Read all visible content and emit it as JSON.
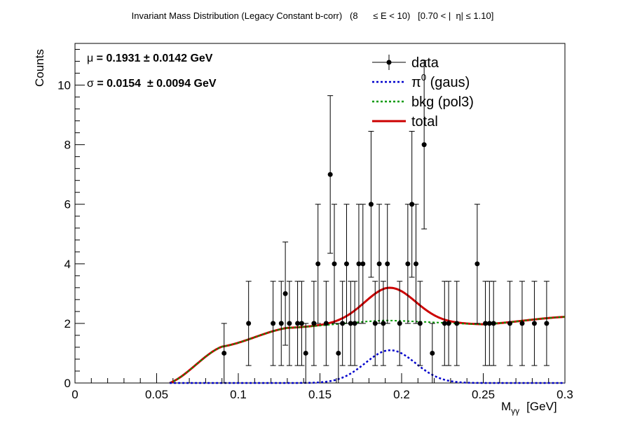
{
  "chart_data": {
    "type": "scatter",
    "title": "Invariant Mass Distribution (Legacy Constant b-corr)   (8      ≤ E < 10)   [0.70 < |  η| ≤ 1.10]",
    "xlabel": "M",
    "xlabel_sub": "γγ",
    "xlabel_unit": "[GeV]",
    "ylabel": "Counts",
    "xlim": [
      0,
      0.3
    ],
    "ylim": [
      0,
      11.4
    ],
    "x_ticks": [
      0,
      0.05,
      0.1,
      0.15,
      0.2,
      0.25,
      0.3
    ],
    "x_tick_labels": [
      "0",
      "0.05",
      "0.1",
      "0.15",
      "0.2",
      "0.25",
      "0.3"
    ],
    "y_ticks": [
      0,
      2,
      4,
      6,
      8,
      10
    ],
    "y_tick_labels": [
      "0",
      "2",
      "4",
      "6",
      "8",
      "10"
    ],
    "stats": {
      "mu": {
        "symbol": "μ",
        "text": " = 0.1931 ± 0.0142 GeV"
      },
      "sigma": {
        "symbol": "σ",
        "text": " = 0.0154  ± 0.0094 GeV"
      }
    },
    "legend": [
      {
        "label": "data",
        "style": "marker-errorbar",
        "color": "#000000"
      },
      {
        "label": "π",
        "sup": "0",
        "suffix": " (gaus)",
        "style": "dashed",
        "color": "#0000cc"
      },
      {
        "label": "bkg (pol3)",
        "style": "dashed",
        "color": "#009900"
      },
      {
        "label": "total",
        "style": "solid",
        "color": "#cc0000"
      }
    ],
    "points": [
      {
        "x": 0.0913,
        "y": 1
      },
      {
        "x": 0.1063,
        "y": 2
      },
      {
        "x": 0.1213,
        "y": 2
      },
      {
        "x": 0.1263,
        "y": 2
      },
      {
        "x": 0.1288,
        "y": 3
      },
      {
        "x": 0.1313,
        "y": 2
      },
      {
        "x": 0.1363,
        "y": 2
      },
      {
        "x": 0.1388,
        "y": 2
      },
      {
        "x": 0.1413,
        "y": 1
      },
      {
        "x": 0.1463,
        "y": 2
      },
      {
        "x": 0.1488,
        "y": 4
      },
      {
        "x": 0.1538,
        "y": 2
      },
      {
        "x": 0.1563,
        "y": 7
      },
      {
        "x": 0.1588,
        "y": 4
      },
      {
        "x": 0.1613,
        "y": 1
      },
      {
        "x": 0.1638,
        "y": 2
      },
      {
        "x": 0.1663,
        "y": 4
      },
      {
        "x": 0.1688,
        "y": 2
      },
      {
        "x": 0.1713,
        "y": 2
      },
      {
        "x": 0.1738,
        "y": 4
      },
      {
        "x": 0.1763,
        "y": 4
      },
      {
        "x": 0.1813,
        "y": 6
      },
      {
        "x": 0.1838,
        "y": 2
      },
      {
        "x": 0.1863,
        "y": 4
      },
      {
        "x": 0.1888,
        "y": 2
      },
      {
        "x": 0.1913,
        "y": 4
      },
      {
        "x": 0.1988,
        "y": 2
      },
      {
        "x": 0.2038,
        "y": 4
      },
      {
        "x": 0.2063,
        "y": 6
      },
      {
        "x": 0.2088,
        "y": 4
      },
      {
        "x": 0.2113,
        "y": 2
      },
      {
        "x": 0.2138,
        "y": 8
      },
      {
        "x": 0.2188,
        "y": 1
      },
      {
        "x": 0.2263,
        "y": 2
      },
      {
        "x": 0.2288,
        "y": 2
      },
      {
        "x": 0.2338,
        "y": 2
      },
      {
        "x": 0.2463,
        "y": 4
      },
      {
        "x": 0.2513,
        "y": 2
      },
      {
        "x": 0.2538,
        "y": 2
      },
      {
        "x": 0.2563,
        "y": 2
      },
      {
        "x": 0.2663,
        "y": 2
      },
      {
        "x": 0.2738,
        "y": 2
      },
      {
        "x": 0.2813,
        "y": 2
      },
      {
        "x": 0.2888,
        "y": 2
      }
    ],
    "fit": {
      "x_min": 0.058,
      "gaus": {
        "amplitude": 1.1,
        "mean": 0.1931,
        "sigma": 0.0154
      },
      "bkg_pol3": [
        {
          "x": 0.058,
          "y": 0
        },
        {
          "x": 0.09,
          "y": 1.22
        },
        {
          "x": 0.13,
          "y": 1.85
        },
        {
          "x": 0.19,
          "y": 2.1
        },
        {
          "x": 0.25,
          "y": 1.97
        },
        {
          "x": 0.3,
          "y": 2.22
        }
      ]
    }
  }
}
